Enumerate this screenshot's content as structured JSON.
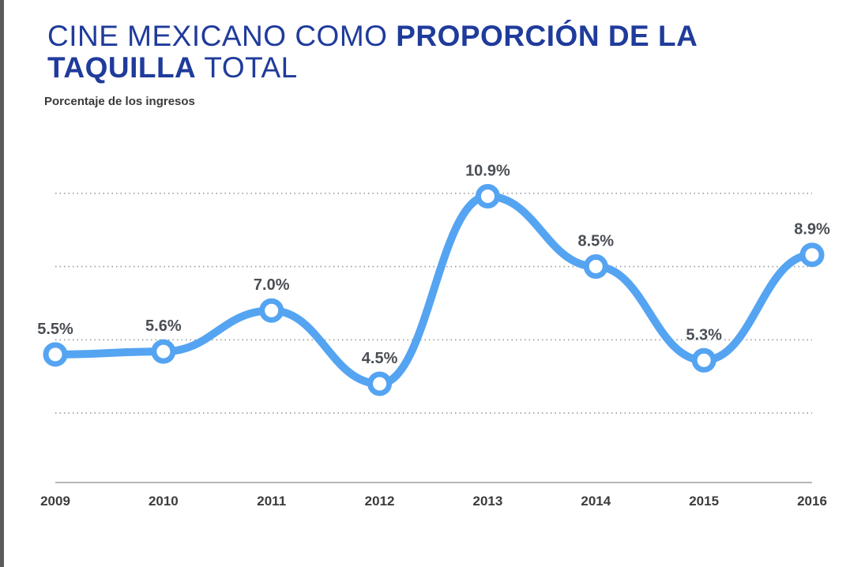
{
  "title": {
    "part1": "CINE MEXICANO COMO ",
    "part2": "PROPORCIÓN DE LA",
    "part3": "TAQUILLA",
    "part4": " TOTAL"
  },
  "subtitle": "Porcentaje de los ingresos",
  "colors": {
    "title": "#1f3b9b",
    "line": "#55a4f2",
    "labels": "#4a4f55"
  },
  "chart_data": {
    "type": "line",
    "title": "CINE MEXICANO COMO PROPORCIÓN DE LA TAQUILLA TOTAL",
    "subtitle": "Porcentaje de los ingresos",
    "categories": [
      "2009",
      "2010",
      "2011",
      "2012",
      "2013",
      "2014",
      "2015",
      "2016"
    ],
    "values": [
      5.5,
      5.6,
      7.0,
      4.5,
      10.9,
      8.5,
      5.3,
      8.9
    ],
    "value_labels": [
      "5.5%",
      "5.6%",
      "7.0%",
      "4.5%",
      "10.9%",
      "8.5%",
      "5.3%",
      "8.9%"
    ],
    "ylim": [
      0,
      12
    ],
    "grid": true,
    "legend": "none"
  }
}
